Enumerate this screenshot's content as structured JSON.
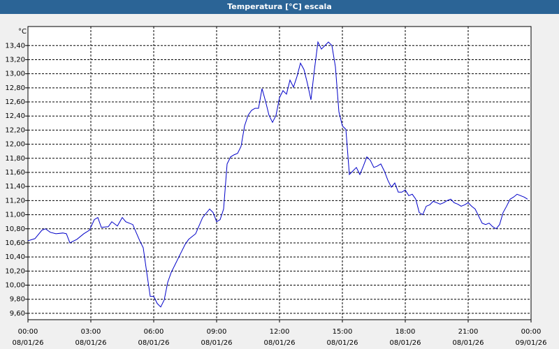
{
  "chart_data": {
    "type": "line",
    "title": "Temperatura [°C] escala",
    "y_label": "°C",
    "x": [
      0,
      20,
      40,
      50,
      64,
      80,
      100,
      110,
      120,
      140,
      160,
      176,
      190,
      200,
      210,
      230,
      240,
      256,
      270,
      280,
      300,
      320,
      330,
      340,
      350,
      360,
      370,
      380,
      390,
      400,
      410,
      420,
      440,
      450,
      460,
      480,
      500,
      520,
      530,
      540,
      550,
      560,
      570,
      580,
      590,
      600,
      610,
      620,
      630,
      640,
      650,
      660,
      670,
      680,
      690,
      700,
      710,
      720,
      730,
      740,
      750,
      760,
      770,
      780,
      790,
      800,
      810,
      820,
      830,
      840,
      850,
      860,
      870,
      880,
      890,
      900,
      910,
      920,
      930,
      940,
      950,
      960,
      970,
      980,
      990,
      1000,
      1010,
      1020,
      1030,
      1040,
      1050,
      1060,
      1070,
      1080,
      1090,
      1100,
      1110,
      1120,
      1130,
      1140,
      1150,
      1160,
      1170,
      1180,
      1190,
      1200,
      1210,
      1220,
      1230,
      1240,
      1250,
      1260,
      1270,
      1280,
      1290,
      1300,
      1310,
      1320,
      1330,
      1340,
      1350,
      1360,
      1370,
      1380,
      1390,
      1400,
      1410,
      1420,
      1430
    ],
    "series": [
      {
        "name": "Temperatura",
        "color": "#0000c8",
        "values": [
          10.63,
          10.66,
          10.78,
          10.8,
          10.75,
          10.73,
          10.74,
          10.73,
          10.6,
          10.65,
          10.73,
          10.78,
          10.93,
          10.96,
          10.82,
          10.83,
          10.9,
          10.84,
          10.96,
          10.9,
          10.86,
          10.63,
          10.53,
          10.18,
          9.84,
          9.84,
          9.74,
          9.69,
          9.79,
          10.04,
          10.18,
          10.28,
          10.48,
          10.58,
          10.65,
          10.73,
          10.96,
          11.08,
          11.03,
          10.9,
          10.93,
          11.08,
          11.72,
          11.82,
          11.85,
          11.87,
          11.97,
          12.26,
          12.41,
          12.48,
          12.51,
          12.51,
          12.79,
          12.61,
          12.41,
          12.31,
          12.41,
          12.66,
          12.76,
          12.71,
          12.91,
          12.81,
          12.96,
          13.15,
          13.06,
          12.86,
          12.63,
          13.06,
          13.45,
          13.35,
          13.4,
          13.45,
          13.4,
          13.1,
          12.46,
          12.26,
          12.21,
          11.57,
          11.62,
          11.67,
          11.57,
          11.69,
          11.82,
          11.77,
          11.67,
          11.69,
          11.72,
          11.62,
          11.49,
          11.39,
          11.45,
          11.32,
          11.32,
          11.35,
          11.27,
          11.29,
          11.22,
          11.03,
          11.0,
          11.12,
          11.14,
          11.19,
          11.17,
          11.15,
          11.17,
          11.2,
          11.22,
          11.17,
          11.15,
          11.12,
          11.14,
          11.17,
          11.12,
          11.08,
          10.98,
          10.88,
          10.86,
          10.88,
          10.83,
          10.8,
          10.86,
          11.03,
          11.12,
          11.22,
          11.25,
          11.29,
          11.27,
          11.25,
          11.22
        ]
      }
    ],
    "xlim": [
      0,
      1440
    ],
    "xticks": [
      {
        "value": 0,
        "label": [
          "00:00",
          "08/01/26"
        ]
      },
      {
        "value": 180,
        "label": [
          "03:00",
          "08/01/26"
        ]
      },
      {
        "value": 360,
        "label": [
          "06:00",
          "08/01/26"
        ]
      },
      {
        "value": 540,
        "label": [
          "09:00",
          "08/01/26"
        ]
      },
      {
        "value": 720,
        "label": [
          "12:00",
          "08/01/26"
        ]
      },
      {
        "value": 900,
        "label": [
          "15:00",
          "08/01/26"
        ]
      },
      {
        "value": 1080,
        "label": [
          "18:00",
          "08/01/26"
        ]
      },
      {
        "value": 1260,
        "label": [
          "21:00",
          "08/01/26"
        ]
      },
      {
        "value": 1440,
        "label": [
          "00:00",
          "09/01/26"
        ]
      }
    ],
    "ylim": [
      9.51,
      13.67
    ],
    "yticks": [
      {
        "value": 9.6,
        "label": "9,60"
      },
      {
        "value": 9.8,
        "label": "9,80"
      },
      {
        "value": 10.0,
        "label": "10,00"
      },
      {
        "value": 10.2,
        "label": "10,20"
      },
      {
        "value": 10.4,
        "label": "10,40"
      },
      {
        "value": 10.6,
        "label": "10,60"
      },
      {
        "value": 10.8,
        "label": "10,80"
      },
      {
        "value": 11.0,
        "label": "11,00"
      },
      {
        "value": 11.2,
        "label": "11,20"
      },
      {
        "value": 11.4,
        "label": "11,40"
      },
      {
        "value": 11.6,
        "label": "11,60"
      },
      {
        "value": 11.8,
        "label": "11,80"
      },
      {
        "value": 12.0,
        "label": "12,00"
      },
      {
        "value": 12.2,
        "label": "12,20"
      },
      {
        "value": 12.4,
        "label": "12,40"
      },
      {
        "value": 12.6,
        "label": "12,60"
      },
      {
        "value": 12.8,
        "label": "12,80"
      },
      {
        "value": 13.0,
        "label": "13,00"
      },
      {
        "value": 13.2,
        "label": "13,20"
      },
      {
        "value": 13.4,
        "label": "13,40"
      }
    ],
    "grid": true
  }
}
